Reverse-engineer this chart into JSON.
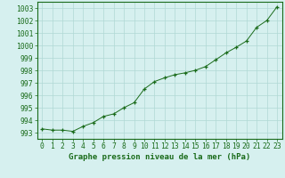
{
  "x": [
    0,
    1,
    2,
    3,
    4,
    5,
    6,
    7,
    8,
    9,
    10,
    11,
    12,
    13,
    14,
    15,
    16,
    17,
    18,
    19,
    20,
    21,
    22,
    23
  ],
  "y": [
    993.3,
    993.2,
    993.2,
    993.1,
    993.5,
    993.8,
    994.3,
    994.5,
    995.0,
    995.4,
    996.5,
    997.1,
    997.4,
    997.65,
    997.8,
    998.0,
    998.3,
    998.85,
    999.4,
    999.85,
    1000.35,
    1001.45,
    1002.0,
    1003.1
  ],
  "line_color": "#1a6b1a",
  "marker": "+",
  "marker_color": "#1a6b1a",
  "bg_color": "#d6f0ef",
  "grid_color": "#b0d8d4",
  "xlabel": "Graphe pression niveau de la mer (hPa)",
  "xlim": [
    -0.5,
    23.5
  ],
  "ylim": [
    992.5,
    1003.5
  ],
  "yticks": [
    993,
    994,
    995,
    996,
    997,
    998,
    999,
    1000,
    1001,
    1002,
    1003
  ],
  "xticks": [
    0,
    1,
    2,
    3,
    4,
    5,
    6,
    7,
    8,
    9,
    10,
    11,
    12,
    13,
    14,
    15,
    16,
    17,
    18,
    19,
    20,
    21,
    22,
    23
  ],
  "xlabel_fontsize": 6.5,
  "tick_fontsize": 5.8
}
